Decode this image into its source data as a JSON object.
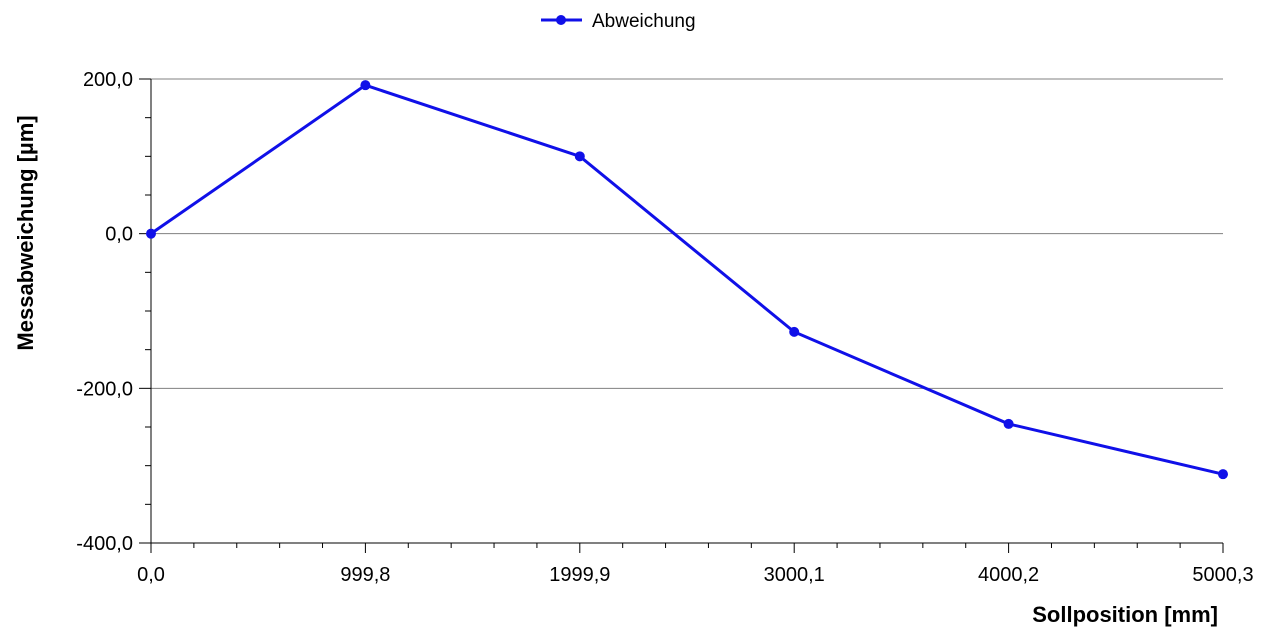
{
  "chart_data": {
    "type": "line",
    "title": "",
    "xlabel": "Sollposition [mm]",
    "ylabel": "Messabweichung [µm]",
    "legend_position": "top-center",
    "grid": "horizontal major",
    "x_tick_labels": [
      "0,0",
      "999,8",
      "1999,9",
      "3000,1",
      "4000,2",
      "5000,3"
    ],
    "y_tick_labels": [
      "200,0",
      "0,0",
      "-200,0",
      "-400,0"
    ],
    "y_ticks": [
      200,
      0,
      -200,
      -400
    ],
    "ylim": [
      -400,
      200
    ],
    "series": [
      {
        "name": "Abweichung",
        "color": "#1010e8",
        "values": [
          0,
          192,
          100,
          -127,
          -246,
          -311
        ]
      }
    ]
  }
}
